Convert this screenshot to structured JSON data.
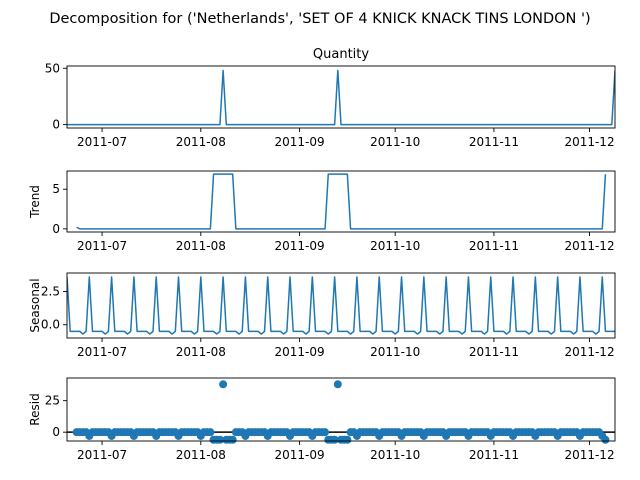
{
  "figure": {
    "suptitle": "Decomposition for ('Netherlands', 'SET OF 4 KNICK KNACK TINS LONDON ')"
  },
  "colors": {
    "series": "#1f77b4",
    "axis": "#000000",
    "zero_line": "#000000"
  },
  "chart_data": [
    {
      "type": "line",
      "title": "Quantity",
      "ylabel": "",
      "x_range": [
        "2011-06-20",
        "2011-12-09"
      ],
      "ylim": [
        -3,
        52
      ],
      "yticks": [
        0,
        50
      ],
      "xticks": [
        "2011-07",
        "2011-08",
        "2011-09",
        "2011-10",
        "2011-11",
        "2011-12"
      ],
      "points": [
        [
          "2011-06-20",
          0
        ],
        [
          "2011-08-07",
          0
        ],
        [
          "2011-08-08",
          48
        ],
        [
          "2011-08-09",
          0
        ],
        [
          "2011-09-12",
          0
        ],
        [
          "2011-09-13",
          48
        ],
        [
          "2011-09-14",
          0
        ],
        [
          "2011-12-08",
          0
        ],
        [
          "2011-12-09",
          48
        ]
      ]
    },
    {
      "type": "line",
      "title": "",
      "ylabel": "Trend",
      "x_range": [
        "2011-06-20",
        "2011-12-09"
      ],
      "ylim": [
        -0.4,
        7.3
      ],
      "yticks": [
        0,
        5
      ],
      "xticks": [
        "2011-07",
        "2011-08",
        "2011-09",
        "2011-10",
        "2011-11",
        "2011-12"
      ],
      "points": [
        [
          "2011-06-23",
          0.2
        ],
        [
          "2011-06-24",
          0
        ],
        [
          "2011-08-04",
          0
        ],
        [
          "2011-08-05",
          6.9
        ],
        [
          "2011-08-11",
          6.9
        ],
        [
          "2011-08-12",
          0
        ],
        [
          "2011-09-09",
          0
        ],
        [
          "2011-09-10",
          6.9
        ],
        [
          "2011-09-16",
          6.9
        ],
        [
          "2011-09-17",
          0
        ],
        [
          "2011-12-05",
          0
        ],
        [
          "2011-12-06",
          6.9
        ]
      ]
    },
    {
      "type": "line",
      "title": "",
      "ylabel": "Seasonal",
      "x_range": [
        "2011-06-20",
        "2011-12-09"
      ],
      "ylim": [
        -1.0,
        3.9
      ],
      "yticks": [
        0.0,
        2.5
      ],
      "xticks": [
        "2011-07",
        "2011-08",
        "2011-09",
        "2011-10",
        "2011-11",
        "2011-12"
      ],
      "period_days": 7,
      "first_date": "2011-06-20",
      "pattern": [
        3.6,
        -0.5,
        -0.5,
        -0.5,
        -0.5,
        -0.7,
        -0.5
      ]
    },
    {
      "type": "scatter",
      "title": "",
      "ylabel": "Resid",
      "x_range": [
        "2011-06-20",
        "2011-12-09"
      ],
      "ylim": [
        -7,
        43
      ],
      "yticks": [
        0,
        25
      ],
      "xticks": [
        "2011-07",
        "2011-08",
        "2011-09",
        "2011-10",
        "2011-11",
        "2011-12"
      ],
      "zero_line": 0,
      "first_date": "2011-06-23",
      "last_date": "2011-12-06",
      "default_value": 0,
      "values_by_date": {
        "2011-06-27": -3,
        "2011-07-04": -3,
        "2011-07-11": -3,
        "2011-07-18": -3,
        "2011-07-25": -3,
        "2011-08-01": -3,
        "2011-08-05": -6,
        "2011-08-06": -6,
        "2011-08-07": -6,
        "2011-08-08": 38,
        "2011-08-09": -6,
        "2011-08-10": -6,
        "2011-08-11": -6,
        "2011-08-15": -3,
        "2011-08-22": -3,
        "2011-08-29": -3,
        "2011-09-05": -3,
        "2011-09-10": -6,
        "2011-09-11": -6,
        "2011-09-12": -6,
        "2011-09-13": 38,
        "2011-09-14": -6,
        "2011-09-15": -6,
        "2011-09-16": -6,
        "2011-09-19": -3,
        "2011-09-26": -3,
        "2011-10-03": -3,
        "2011-10-10": -3,
        "2011-10-17": -3,
        "2011-10-24": -3,
        "2011-10-31": -3,
        "2011-11-07": -3,
        "2011-11-14": -3,
        "2011-11-21": -3,
        "2011-11-28": -3,
        "2011-12-05": -3,
        "2011-12-06": -6
      }
    }
  ]
}
